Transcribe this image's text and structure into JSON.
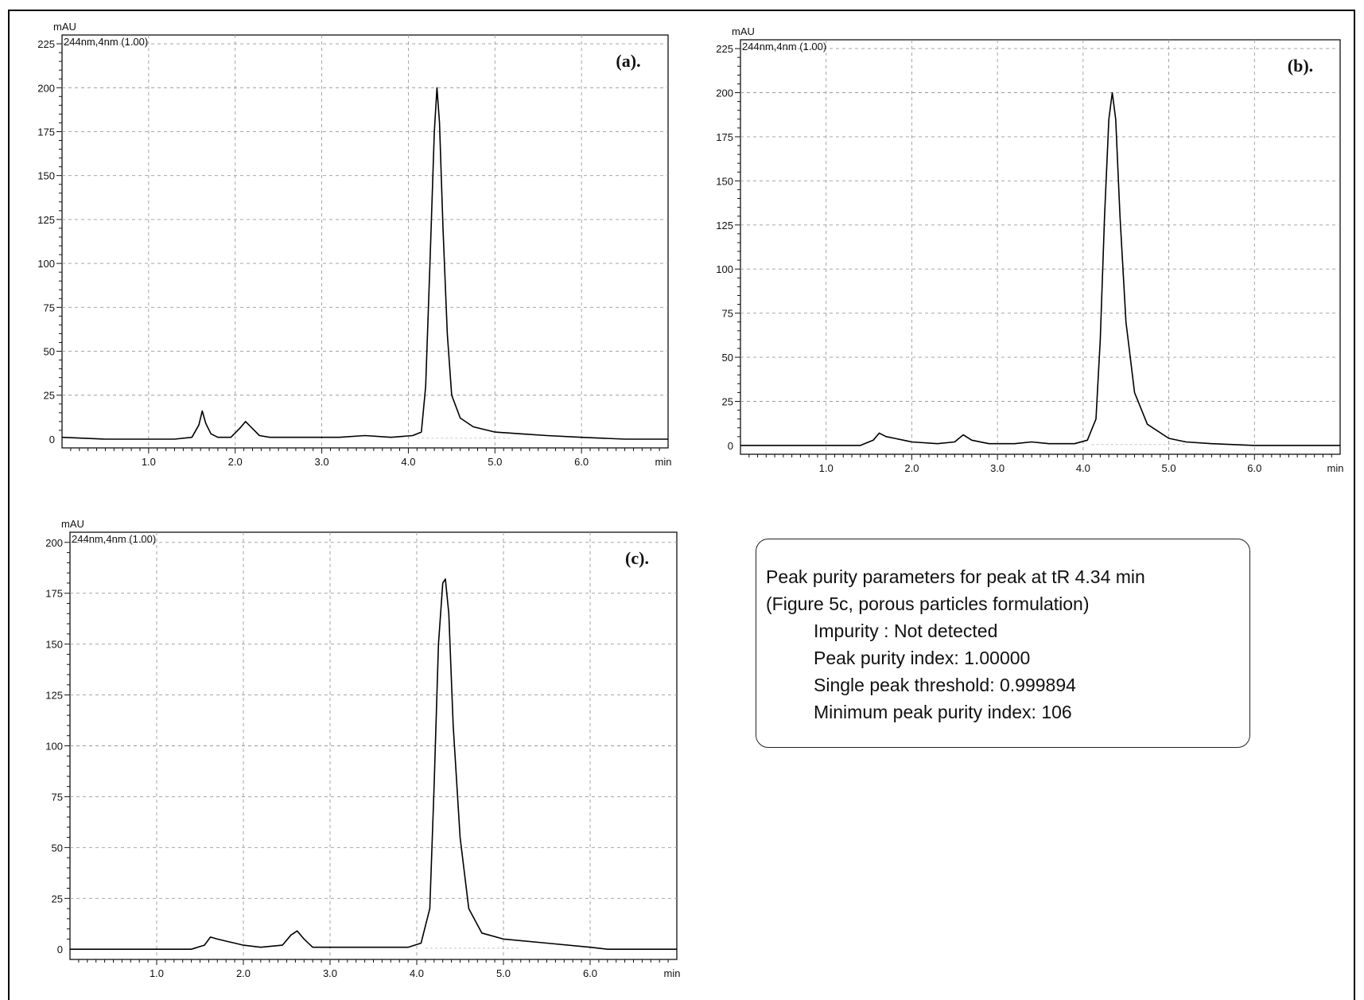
{
  "chart_data": [
    {
      "id": "a",
      "type": "line",
      "panel_label": "(a).",
      "wavelength_label": "244nm,4nm (1.00)",
      "ylabel": "mAU",
      "xlabel": "min",
      "xlim": [
        0,
        7.0
      ],
      "ylim": [
        -5,
        230
      ],
      "xticks": [
        1.0,
        2.0,
        3.0,
        4.0,
        5.0,
        6.0
      ],
      "xtick_labels": [
        "1.0",
        "2.0",
        "3.0",
        "4.0",
        "5.0",
        "6.0"
      ],
      "yticks": [
        0,
        25,
        50,
        75,
        100,
        125,
        150,
        175,
        200,
        225
      ],
      "ytick_labels": [
        "0",
        "25",
        "50",
        "75",
        "100",
        "125",
        "150",
        "175",
        "200",
        "225"
      ],
      "grid": true,
      "series": [
        {
          "x": [
            0,
            0.5,
            1.0,
            1.3,
            1.5,
            1.58,
            1.62,
            1.66,
            1.72,
            1.8,
            1.95,
            2.05,
            2.12,
            2.18,
            2.28,
            2.4,
            2.6,
            2.9,
            3.2,
            3.5,
            3.8,
            4.05,
            4.15,
            4.2,
            4.25,
            4.3,
            4.33,
            4.36,
            4.4,
            4.45,
            4.5,
            4.6,
            4.75,
            5.0,
            5.3,
            5.6,
            6.0,
            6.5,
            7.0
          ],
          "y": [
            1,
            0,
            0,
            0,
            1,
            8,
            16,
            9,
            3,
            1,
            1,
            6,
            10,
            7,
            2,
            1,
            1,
            1,
            1,
            2,
            1,
            2,
            4,
            30,
            100,
            175,
            200,
            180,
            120,
            60,
            25,
            12,
            7,
            4,
            3,
            2,
            1,
            0,
            0
          ]
        }
      ]
    },
    {
      "id": "b",
      "type": "line",
      "panel_label": "(b).",
      "wavelength_label": "244nm,4nm (1.00)",
      "ylabel": "mAU",
      "xlabel": "min",
      "xlim": [
        0,
        7.0
      ],
      "ylim": [
        -5,
        230
      ],
      "xticks": [
        1.0,
        2.0,
        3.0,
        4.0,
        5.0,
        6.0
      ],
      "xtick_labels": [
        "1.0",
        "2.0",
        "3.0",
        "4.0",
        "5.0",
        "6.0"
      ],
      "yticks": [
        0,
        25,
        50,
        75,
        100,
        125,
        150,
        175,
        200,
        225
      ],
      "ytick_labels": [
        "0",
        "25",
        "50",
        "75",
        "100",
        "125",
        "150",
        "175",
        "200",
        "225"
      ],
      "grid": true,
      "series": [
        {
          "x": [
            0,
            0.5,
            1.0,
            1.4,
            1.55,
            1.62,
            1.7,
            1.8,
            2.0,
            2.3,
            2.5,
            2.6,
            2.7,
            2.9,
            3.2,
            3.4,
            3.6,
            3.9,
            4.05,
            4.15,
            4.2,
            4.25,
            4.3,
            4.34,
            4.38,
            4.43,
            4.5,
            4.6,
            4.75,
            5.0,
            5.2,
            5.5,
            6.0,
            7.0
          ],
          "y": [
            0,
            0,
            0,
            0,
            3,
            7,
            5,
            4,
            2,
            1,
            2,
            6,
            3,
            1,
            1,
            2,
            1,
            1,
            3,
            15,
            60,
            130,
            185,
            200,
            185,
            130,
            70,
            30,
            12,
            4,
            2,
            1,
            0,
            0
          ]
        }
      ]
    },
    {
      "id": "c",
      "type": "line",
      "panel_label": "(c).",
      "wavelength_label": "244nm,4nm (1.00)",
      "ylabel": "mAU",
      "xlabel": "min",
      "xlim": [
        0,
        7.0
      ],
      "ylim": [
        -5,
        205
      ],
      "xticks": [
        1.0,
        2.0,
        3.0,
        4.0,
        5.0,
        6.0
      ],
      "xtick_labels": [
        "1.0",
        "2.0",
        "3.0",
        "4.0",
        "5.0",
        "6.0"
      ],
      "yticks": [
        0,
        25,
        50,
        75,
        100,
        125,
        150,
        175,
        200
      ],
      "ytick_labels": [
        "0",
        "25",
        "50",
        "75",
        "100",
        "125",
        "150",
        "175",
        "200"
      ],
      "grid": true,
      "series": [
        {
          "x": [
            0,
            0.5,
            1.0,
            1.4,
            1.55,
            1.62,
            1.7,
            1.8,
            1.9,
            2.0,
            2.2,
            2.45,
            2.55,
            2.62,
            2.7,
            2.8,
            3.0,
            3.3,
            3.6,
            3.9,
            4.05,
            4.15,
            4.2,
            4.25,
            4.3,
            4.33,
            4.37,
            4.42,
            4.5,
            4.6,
            4.75,
            5.0,
            5.5,
            6.0,
            6.2,
            7.0
          ],
          "y": [
            0,
            0,
            0,
            0,
            2,
            6,
            5,
            4,
            3,
            2,
            1,
            2,
            7,
            9,
            5,
            1,
            1,
            1,
            1,
            1,
            3,
            20,
            80,
            150,
            180,
            182,
            165,
            110,
            55,
            20,
            8,
            5,
            3,
            1,
            0,
            0
          ]
        }
      ]
    }
  ],
  "info_box": {
    "line1": "Peak purity parameters for peak at tR 4.34 min",
    "line2": "(Figure 5c, porous particles formulation)",
    "line3": "Impurity : Not detected",
    "line4": "Peak purity index: 1.00000",
    "line5": "Single peak threshold: 0.999894",
    "line6": "Minimum peak purity index: 106"
  }
}
